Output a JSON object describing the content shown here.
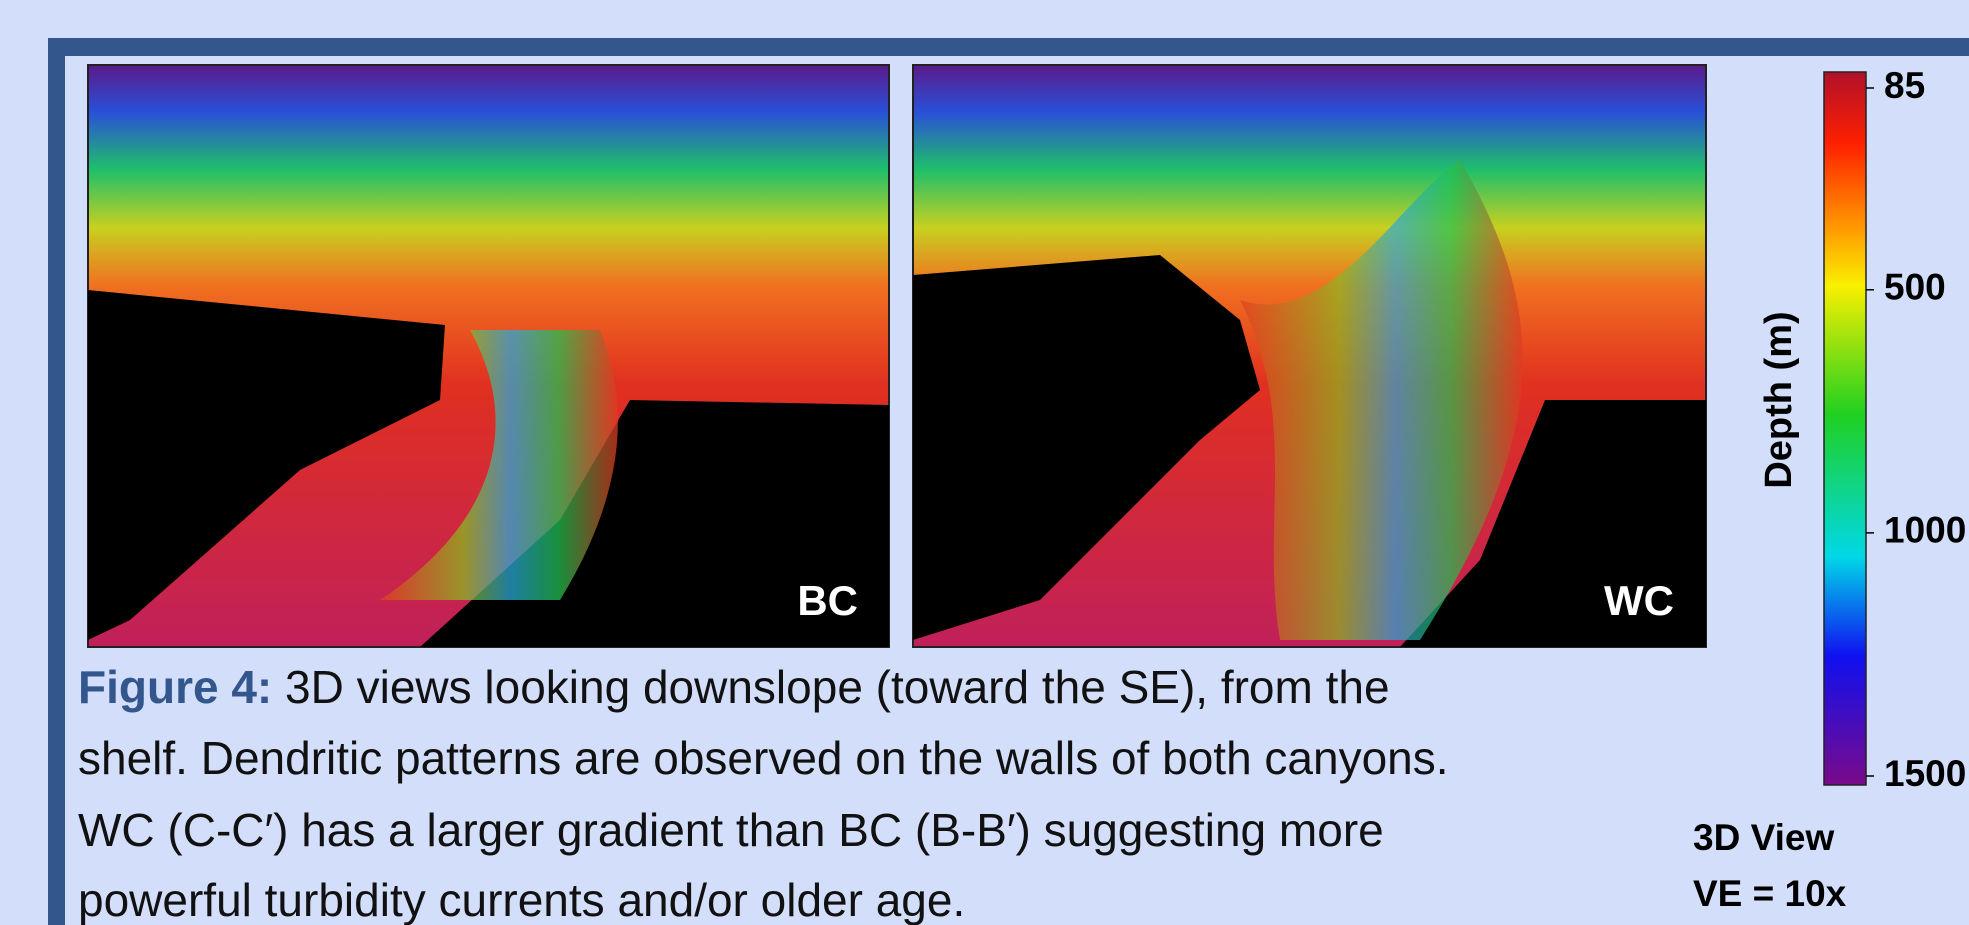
{
  "figure": {
    "panels": [
      {
        "label": "BC"
      },
      {
        "label": "WC"
      }
    ],
    "colorbar": {
      "label": "Depth (m)",
      "ticks": [
        85,
        500,
        1000,
        1500
      ]
    },
    "caption": {
      "prefix": "Figure 4:",
      "lines": [
        " 3D views looking downslope (toward the SE), from the",
        "shelf. Dendritic patterns are observed on the walls of both canyons.",
        "WC (C-C′) has a larger gradient than BC (B-B′) suggesting more",
        "powerful turbidity currents and/or older age."
      ]
    },
    "view": {
      "lines": [
        "3D View",
        "VE = 10x"
      ]
    }
  }
}
